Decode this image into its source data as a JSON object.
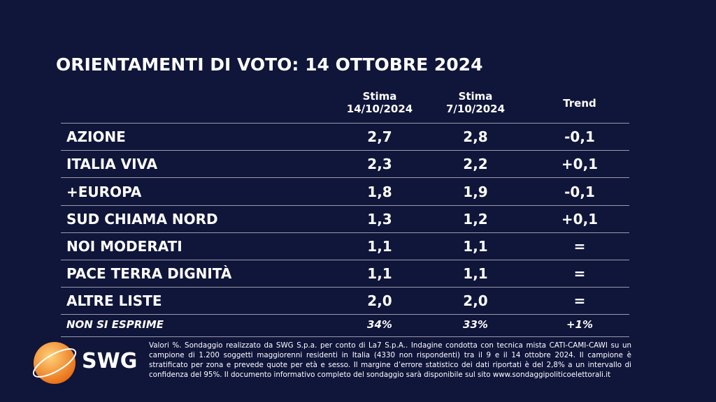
{
  "title": "ORIENTAMENTI DI VOTO: 14 OTTOBRE 2024",
  "table": {
    "header": [
      [
        "Stima",
        "14/10/2024"
      ],
      [
        "Stima",
        "7/10/2024"
      ],
      [
        "Trend"
      ]
    ],
    "rows": [
      [
        "AZIONE",
        "2,7",
        "2,8",
        "-0,1"
      ],
      [
        "ITALIA VIVA",
        "2,3",
        "2,2",
        "+0,1"
      ],
      [
        "+EUROPA",
        "1,8",
        "1,9",
        "-0,1"
      ],
      [
        "SUD CHIAMA NORD",
        "1,3",
        "1,2",
        "+0,1"
      ],
      [
        "NOI MODERATI",
        "1,1",
        "1,1",
        "="
      ],
      [
        "PACE TERRA DIGNITÀ",
        "1,1",
        "1,1",
        "="
      ],
      [
        "ALTRE LISTE",
        "2,0",
        "2,0",
        "="
      ]
    ],
    "footer_row": [
      "NON SI ESPRIME",
      "34%",
      "33%",
      "+1%"
    ]
  },
  "logo": "SWG",
  "note": "Valori %. Sondaggio realizzato da SWG S.p.a. per conto di La7 S.p.A.. Indagine condotta con tecnica mista CATI-CAMI-CAWI su un campione di 1.200 soggetti maggiorenni residenti in Italia (4330 non rispondenti) tra il 9 e il 14 ottobre 2024. Il campione è stratificato per zona e prevede quote per età e sesso. Il margine d’errore statistico dei dati riportati è del 2,8% a un intervallo di confidenza del 95%. Il documento informativo completo del sondaggio sarà disponibile sul sito www.sondaggipoliticoelettorali.it"
}
